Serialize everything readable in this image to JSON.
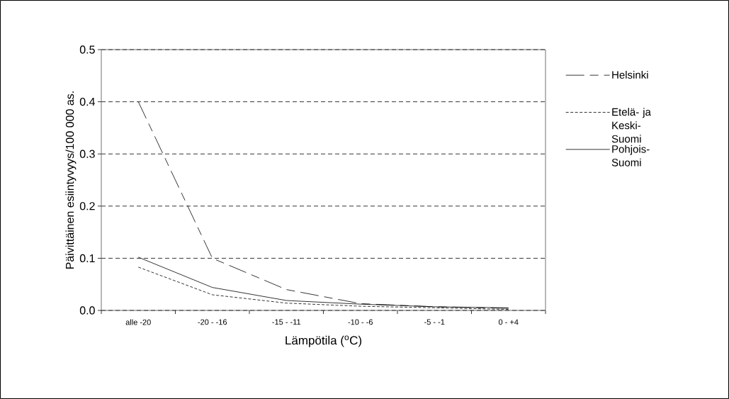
{
  "chart_data": {
    "type": "line",
    "xlabel": "Lämpötila ($^{o}$C)",
    "ylabel": "Päivittäinen esiintyvyys/100 000 as.",
    "categories": [
      "alle -20",
      "-20 - -16",
      "-15 - -11",
      "-10 - -6",
      "-5 - -1",
      "0 - +4"
    ],
    "series": [
      {
        "name": "Helsinki",
        "color": "#000000",
        "line_style": "dashed",
        "values": [
          0.4,
          0.1,
          0.04,
          0.013,
          0.007,
          0.004
        ]
      },
      {
        "name": "Etelä- ja Keski-Suomi",
        "color": "#000000",
        "line_style": "dotted",
        "values": [
          0.083,
          0.03,
          0.014,
          0.008,
          0.005,
          0.002
        ]
      },
      {
        "name": "Pohjois-Suomi",
        "color": "#000000",
        "line_style": "solid",
        "values": [
          0.102,
          0.044,
          0.019,
          0.012,
          0.007,
          0.005
        ]
      }
    ],
    "ylim": [
      0,
      0.5
    ],
    "yticks": [
      {
        "value": 0,
        "label": "0.0"
      },
      0.1,
      0.2,
      0.3,
      0.4,
      0.5
    ],
    "grid": "y",
    "legend": "right",
    "marker": "none"
  }
}
